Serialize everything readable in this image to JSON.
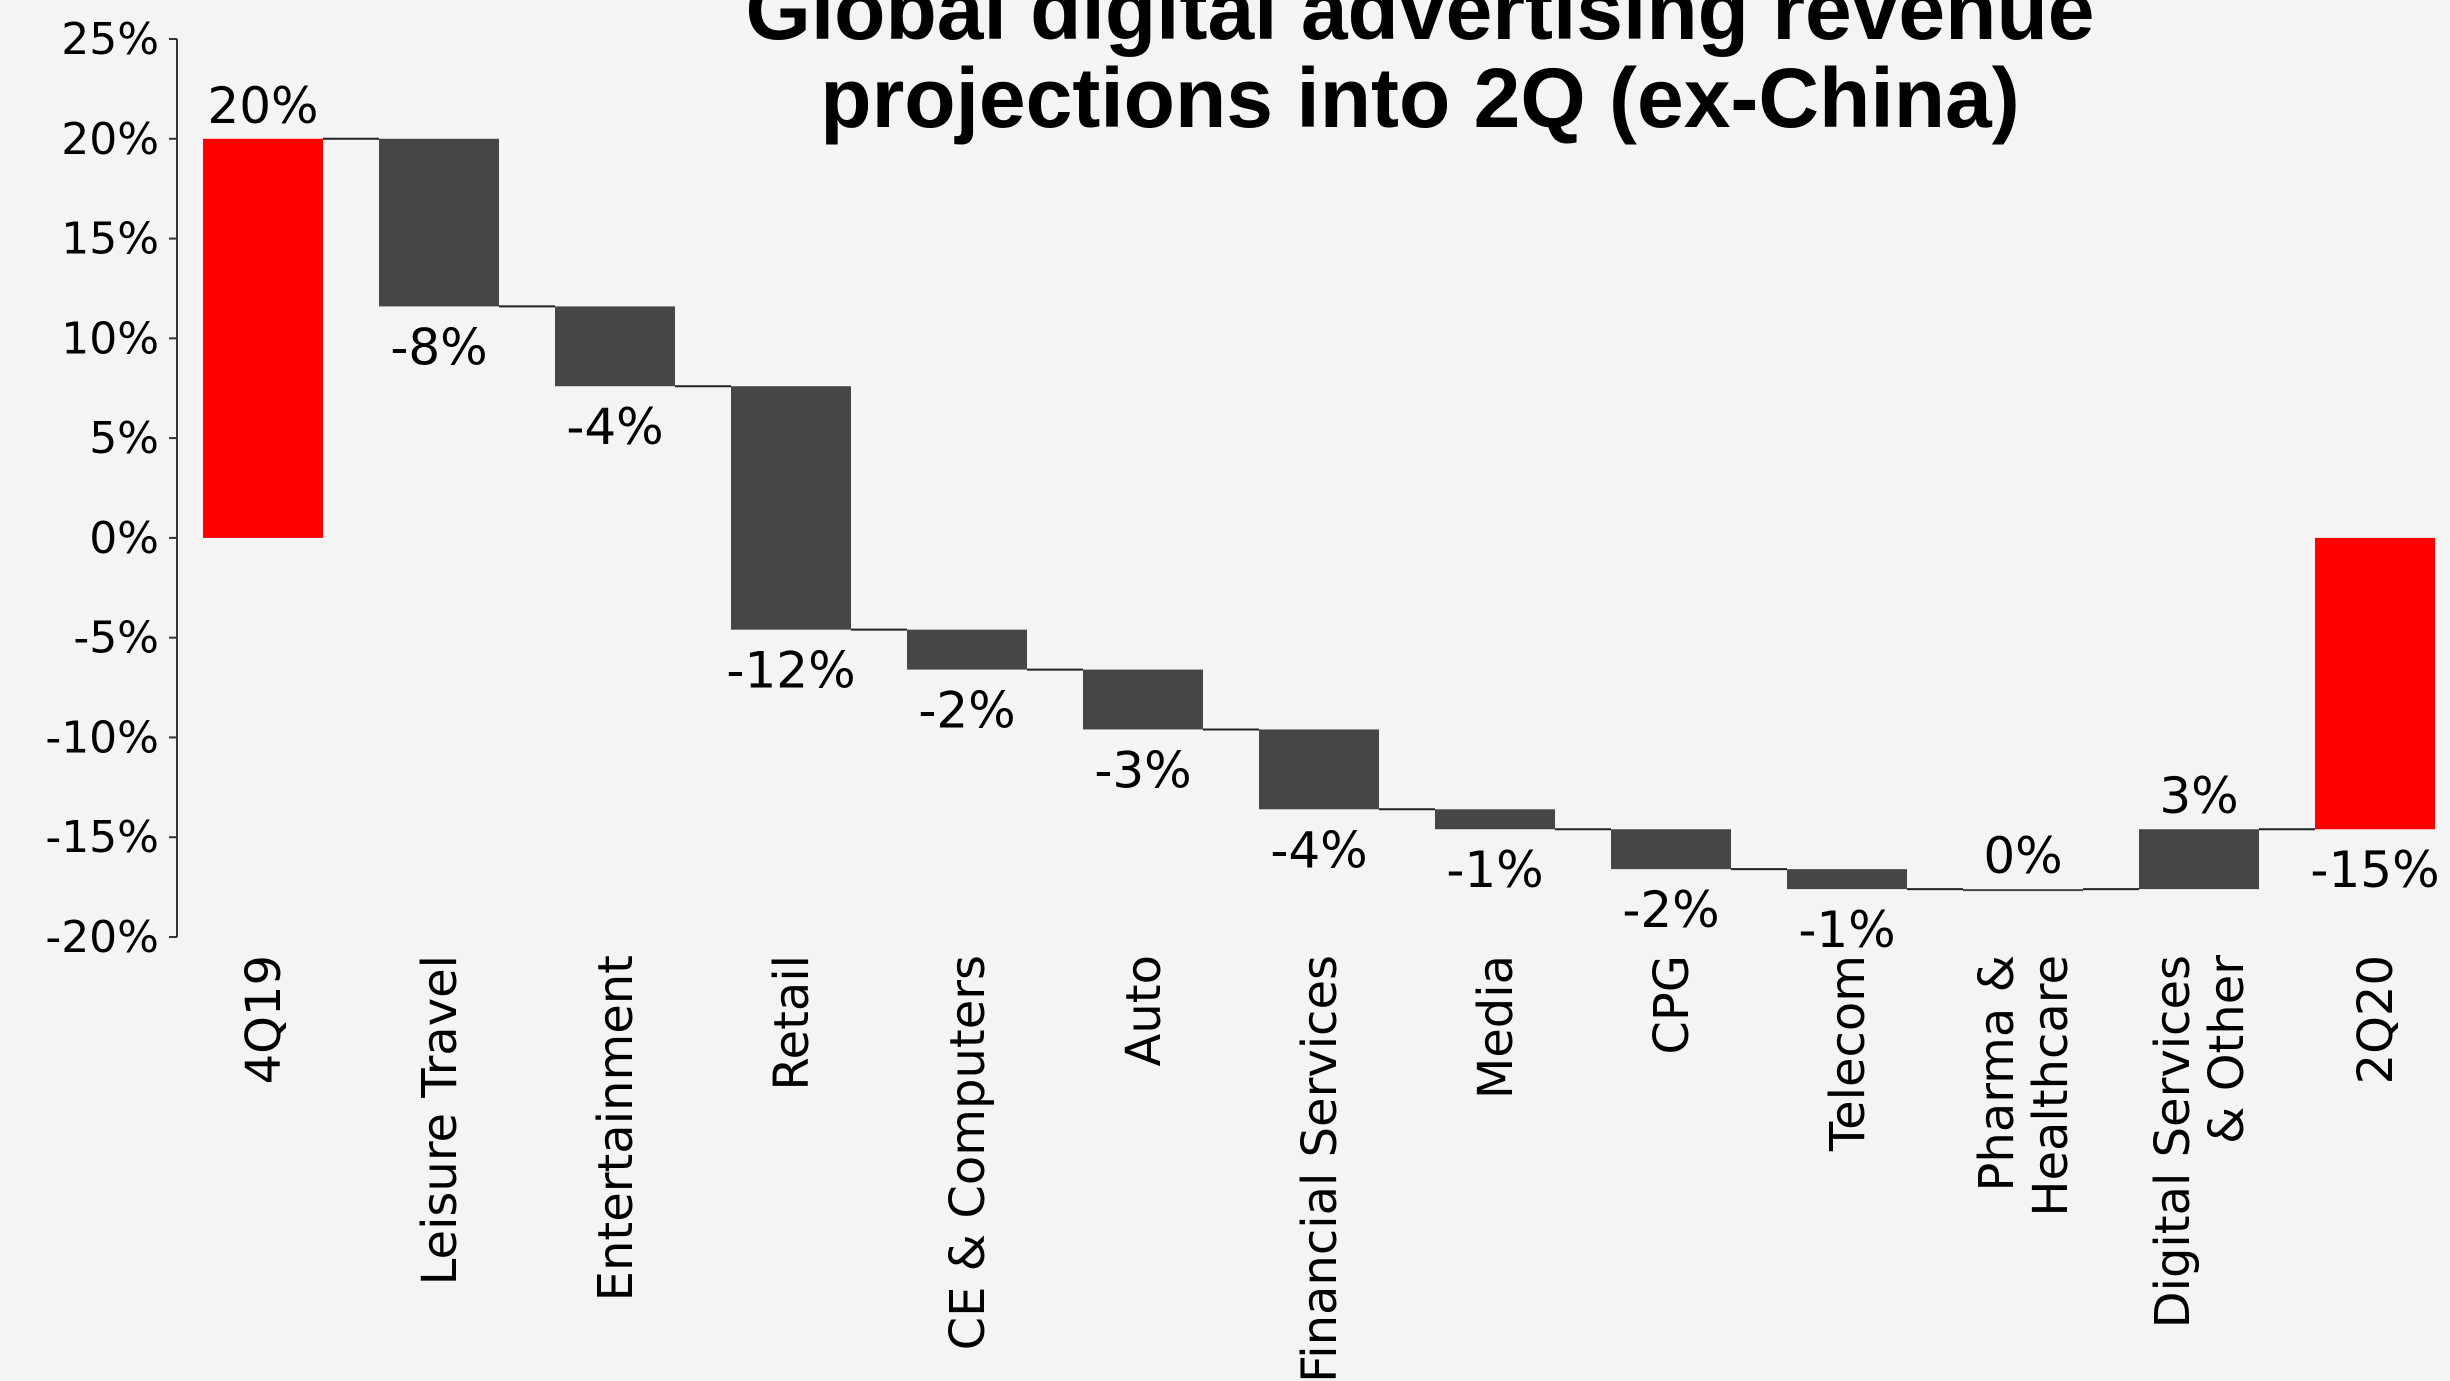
{
  "chart_data": {
    "type": "bar",
    "subtype": "waterfall",
    "title_lines": [
      "Global digital advertising revenue",
      "projections into 2Q (ex-China)"
    ],
    "xlabel": "",
    "ylabel": "",
    "ylim": [
      -20,
      25
    ],
    "yticks": [
      "25%",
      "20%",
      "15%",
      "10%",
      "5%",
      "0%",
      "-5%",
      "-10%",
      "-15%",
      "-20%"
    ],
    "grid": false,
    "legend": "none",
    "colors": {
      "total": "#ff0000",
      "change": "#464646",
      "connector": "#222222"
    },
    "categories": [
      [
        "4Q19"
      ],
      [
        "Leisure Travel"
      ],
      [
        "Entertainment"
      ],
      [
        "Retail"
      ],
      [
        "CE & Computers"
      ],
      [
        "Auto"
      ],
      [
        "Financial Services"
      ],
      [
        "Media"
      ],
      [
        "CPG"
      ],
      [
        "Telecom"
      ],
      [
        "Pharma &",
        "Healthcare"
      ],
      [
        "Digital Services",
        "& Other"
      ],
      [
        "2Q20"
      ]
    ],
    "bar_type": [
      "total",
      "change",
      "change",
      "change",
      "change",
      "change",
      "change",
      "change",
      "change",
      "change",
      "change",
      "change",
      "total"
    ],
    "bar_start": [
      0,
      20,
      11.6,
      7.6,
      -4.6,
      -6.6,
      -9.6,
      -13.6,
      -14.6,
      -16.6,
      -17.6,
      -17.6,
      -14.6
    ],
    "bar_end": [
      20,
      11.6,
      7.6,
      -4.6,
      -6.6,
      -9.6,
      -13.6,
      -14.6,
      -16.6,
      -17.6,
      -17.6,
      -14.6,
      0
    ],
    "data_labels": [
      "20%",
      "-8%",
      "-4%",
      "-12%",
      "-2%",
      "-3%",
      "-4%",
      "-1%",
      "-2%",
      "-1%",
      "0%",
      "3%",
      "-15%"
    ]
  }
}
